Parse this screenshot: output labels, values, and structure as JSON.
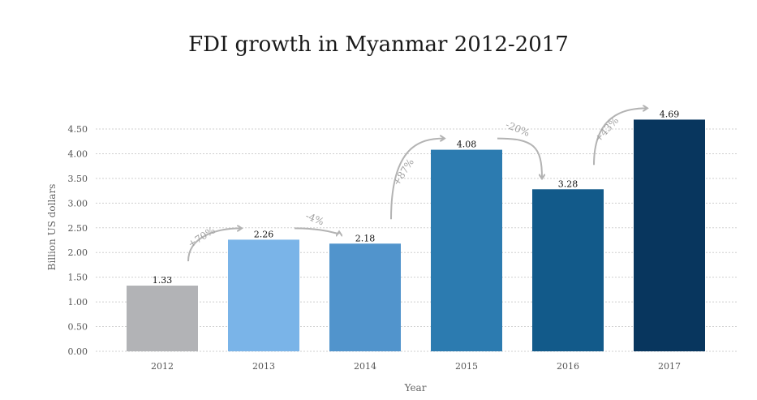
{
  "chart_data": {
    "type": "bar",
    "title": "FDI growth in Myanmar 2012-2017",
    "xlabel": "Year",
    "ylabel": "Billion US dollars",
    "categories": [
      "2012",
      "2013",
      "2014",
      "2015",
      "2016",
      "2017"
    ],
    "values": [
      1.33,
      2.26,
      2.18,
      4.08,
      3.28,
      4.69
    ],
    "value_labels": [
      "1.33",
      "2.26",
      "2.18",
      "4.08",
      "3.28",
      "4.69"
    ],
    "colors": [
      "#b2b3b6",
      "#7ab4e8",
      "#5194cc",
      "#2c7bb0",
      "#125a8a",
      "#08365e"
    ],
    "ylim": [
      0,
      4.5
    ],
    "yticks": [
      0,
      0.5,
      1,
      1.5,
      2,
      2.5,
      3,
      3.5,
      4,
      4.5
    ],
    "ytick_labels": [
      "0.00",
      "0.50",
      "1.00",
      "1.50",
      "2.00",
      "2.50",
      "3.00",
      "3.50",
      "4.00",
      "4.50"
    ],
    "grid": true,
    "changes": [
      {
        "from": "2012",
        "to": "2013",
        "label": "+70%"
      },
      {
        "from": "2013",
        "to": "2014",
        "label": "-4%"
      },
      {
        "from": "2014",
        "to": "2015",
        "label": "+87%"
      },
      {
        "from": "2015",
        "to": "2016",
        "label": "-20%"
      },
      {
        "from": "2016",
        "to": "2017",
        "label": "+43%"
      }
    ]
  }
}
